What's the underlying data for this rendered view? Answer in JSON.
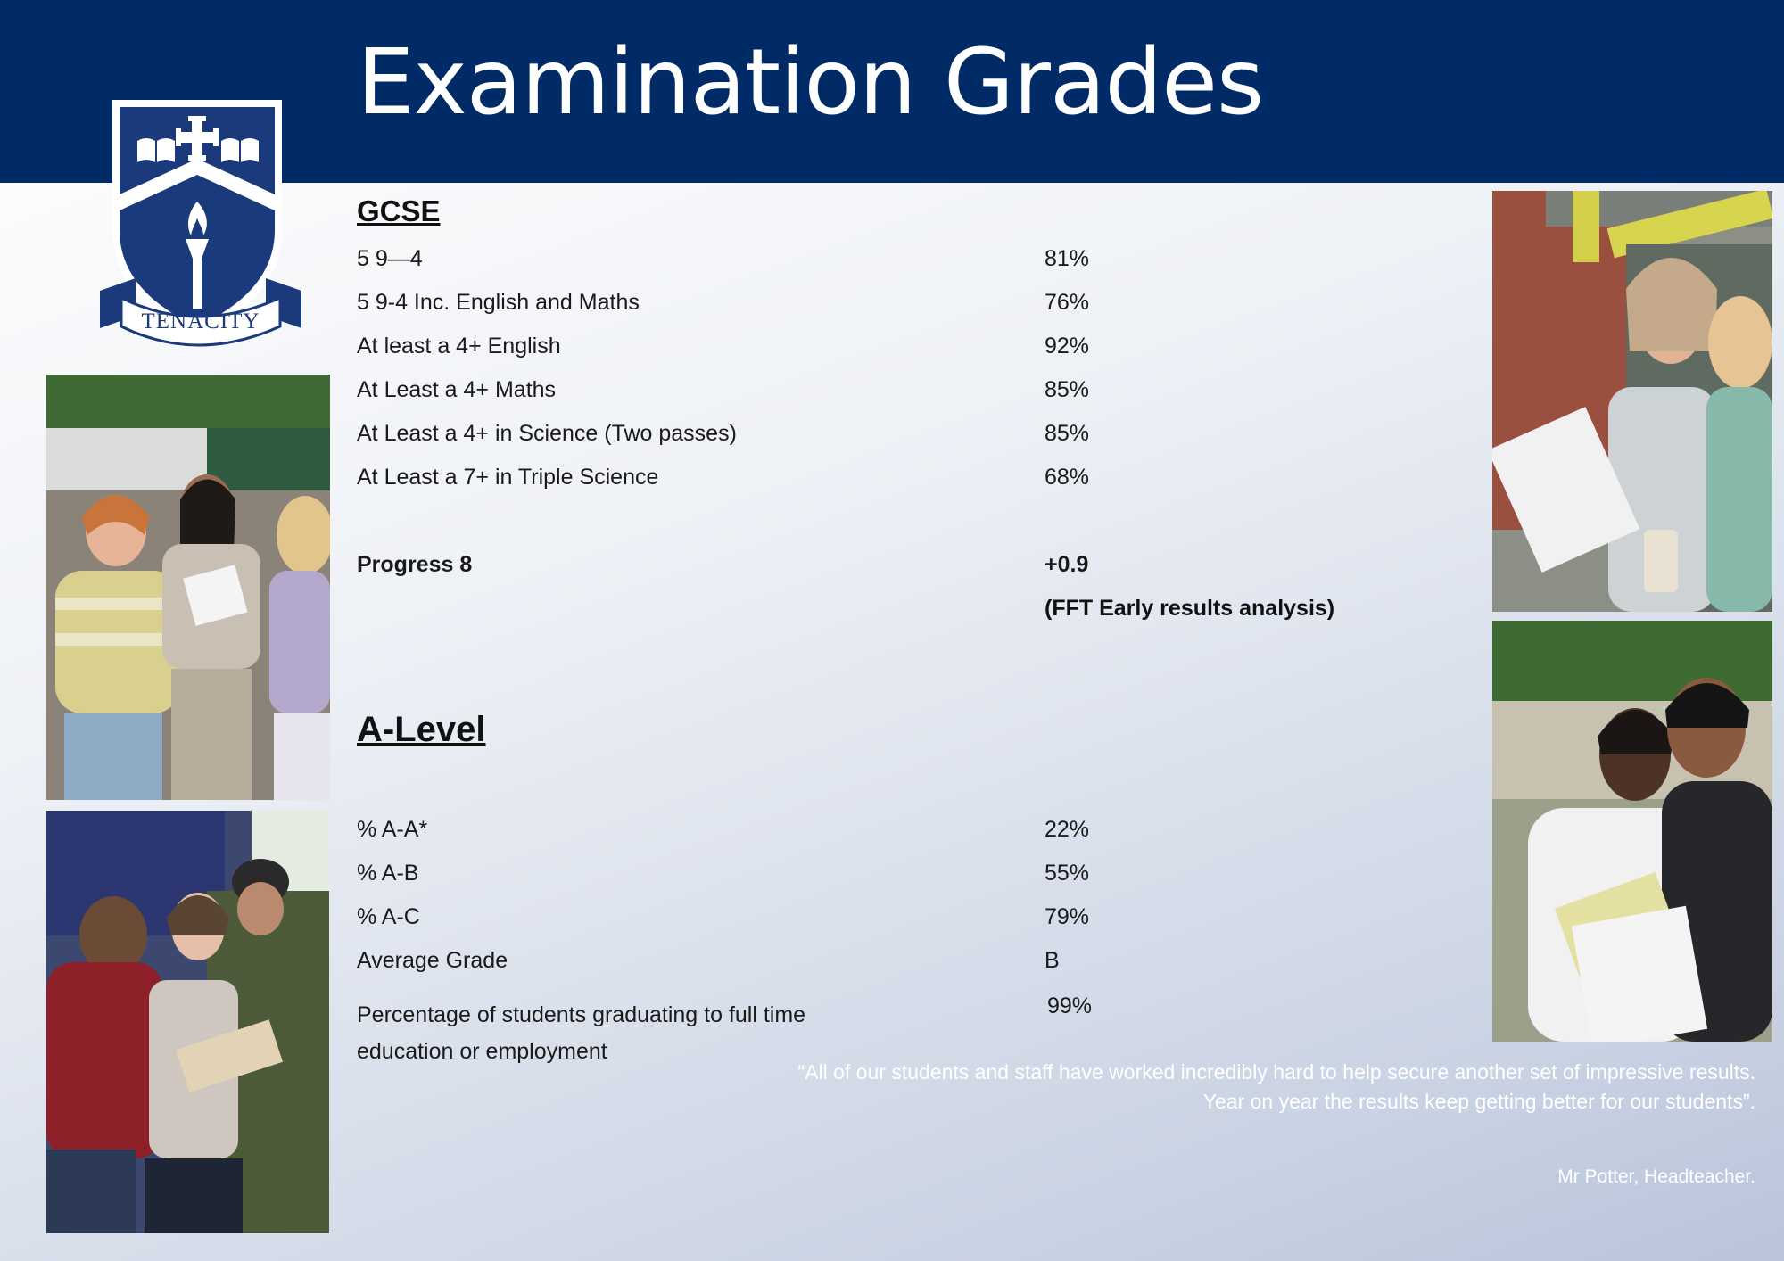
{
  "header": {
    "title": "Examination Grades"
  },
  "crest": {
    "motto": "TENACITY"
  },
  "gcse": {
    "heading": "GCSE",
    "rows": [
      {
        "label": "5 9—4",
        "value": "81%"
      },
      {
        "label": "5 9-4 Inc. English and Maths",
        "value": "76%"
      },
      {
        "label": "At least a 4+ English",
        "value": "92%"
      },
      {
        "label": "At Least a 4+ Maths",
        "value": "85%"
      },
      {
        "label": "At Least a 4+ in Science (Two passes)",
        "value": "85%"
      },
      {
        "label": "At Least a 7+ in Triple Science",
        "value": "68%"
      }
    ],
    "progress": {
      "label": "Progress 8",
      "value": "+0.9",
      "note": "(FFT Early results analysis)"
    }
  },
  "alevel": {
    "heading": "A-Level",
    "rows": [
      {
        "label": "% A-A*",
        "value": "22%"
      },
      {
        "label": "% A-B",
        "value": "55%"
      },
      {
        "label": "% A-C",
        "value": "79%"
      },
      {
        "label": "Average Grade",
        "value": "B"
      }
    ],
    "destinations": {
      "label": "Percentage of students graduating to full time education or employment",
      "value": "99%"
    }
  },
  "quote": {
    "text": "“All of our students and staff have worked incredibly hard to help secure another set of impressive results. Year on year the results keep getting better for our students”.",
    "attribution": "Mr Potter, Headteacher."
  },
  "colors": {
    "banner": "#002b67",
    "crest_blue": "#1b3a7c",
    "quote_text": "#ffffff"
  }
}
